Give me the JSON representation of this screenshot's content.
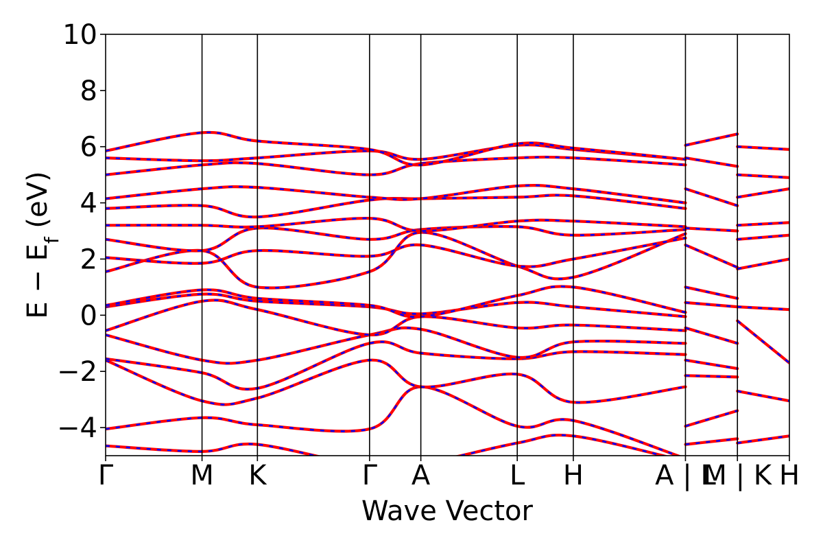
{
  "chart_data": {
    "type": "line",
    "title": "",
    "xlabel": "Wave Vector",
    "ylabel": "E − E_f (eV)",
    "ylabel_main": "E − E",
    "ylabel_sub": "f",
    "ylabel_unit": " (eV)",
    "ylim": [
      -5,
      10
    ],
    "yticks": [
      -4,
      -2,
      0,
      2,
      4,
      6,
      8,
      10
    ],
    "ytick_labels": [
      "−4",
      "−2",
      "0",
      "2",
      "4",
      "6",
      "8",
      "10"
    ],
    "xlim": [
      0,
      1
    ],
    "kpoints": [
      {
        "label": "Γ",
        "x": 0.0
      },
      {
        "label": "M",
        "x": 0.141
      },
      {
        "label": "K",
        "x": 0.222
      },
      {
        "label": "Γ",
        "x": 0.386
      },
      {
        "label": "A",
        "x": 0.461
      },
      {
        "label": "L",
        "x": 0.602
      },
      {
        "label": "H",
        "x": 0.684
      },
      {
        "label": "A | L",
        "x": 0.848
      },
      {
        "label": "M | K",
        "x": 0.924
      },
      {
        "label": "H",
        "x": 1.0
      }
    ],
    "segment_breaks": [
      0.848,
      0.924
    ],
    "series_colors": {
      "primary": "#ff0000",
      "overlay": "#0000ff"
    },
    "grid": false,
    "bands": [
      {
        "x": [
          0,
          0.141,
          0.222,
          0.386,
          0.461,
          0.602,
          0.684,
          0.848
        ],
        "y": [
          -4.65,
          -4.85,
          -4.6,
          -5.4,
          -5.3,
          -4.55,
          -4.3,
          -5.2
        ]
      },
      {
        "x": [
          0,
          0.141,
          0.222,
          0.386,
          0.461,
          0.602,
          0.684,
          0.848
        ],
        "y": [
          -4.05,
          -3.65,
          -3.9,
          -4.05,
          -2.55,
          -3.95,
          -3.75,
          -5.1
        ]
      },
      {
        "x": [
          0,
          0.141,
          0.222,
          0.386,
          0.461,
          0.602,
          0.684,
          0.848
        ],
        "y": [
          -1.6,
          -3.05,
          -2.95,
          -1.6,
          -2.55,
          -2.1,
          -3.1,
          -2.55
        ]
      },
      {
        "x": [
          0,
          0.141,
          0.222,
          0.386,
          0.461,
          0.602,
          0.684,
          0.848
        ],
        "y": [
          -1.55,
          -2.05,
          -2.6,
          -1.0,
          -1.35,
          -1.55,
          -1.3,
          -1.4
        ]
      },
      {
        "x": [
          0,
          0.141,
          0.222,
          0.386,
          0.461,
          0.602,
          0.684,
          0.848
        ],
        "y": [
          -0.7,
          -1.6,
          -1.6,
          -0.7,
          -0.5,
          -1.5,
          -0.95,
          -1.0
        ]
      },
      {
        "x": [
          0,
          0.141,
          0.222,
          0.386,
          0.461,
          0.602,
          0.684,
          0.848
        ],
        "y": [
          -0.55,
          0.5,
          0.2,
          -0.7,
          -0.05,
          -0.45,
          -0.35,
          -0.55
        ]
      },
      {
        "x": [
          0,
          0.141,
          0.222,
          0.386,
          0.461,
          0.602,
          0.684,
          0.848
        ],
        "y": [
          0.3,
          0.75,
          0.5,
          0.3,
          0.05,
          0.45,
          0.3,
          -0.05
        ]
      },
      {
        "x": [
          0,
          0.141,
          0.222,
          0.386,
          0.461,
          0.602,
          0.684,
          0.848
        ],
        "y": [
          0.35,
          0.9,
          0.6,
          0.35,
          -0.05,
          0.7,
          1.0,
          0.1
        ]
      },
      {
        "x": [
          0,
          0.141,
          0.222,
          0.386,
          0.461,
          0.602,
          0.684,
          0.848
        ],
        "y": [
          1.55,
          2.3,
          1.0,
          1.55,
          2.95,
          1.75,
          1.35,
          2.9
        ]
      },
      {
        "x": [
          0,
          0.141,
          0.222,
          0.386,
          0.461,
          0.602,
          0.684,
          0.848
        ],
        "y": [
          2.05,
          1.85,
          2.3,
          2.1,
          2.5,
          1.75,
          2.0,
          2.75
        ]
      },
      {
        "x": [
          0,
          0.141,
          0.222,
          0.386,
          0.461,
          0.602,
          0.684,
          0.848
        ],
        "y": [
          2.7,
          2.3,
          3.1,
          2.7,
          3.05,
          3.15,
          2.85,
          3.05
        ]
      },
      {
        "x": [
          0,
          0.141,
          0.222,
          0.386,
          0.461,
          0.602,
          0.684,
          0.848
        ],
        "y": [
          3.2,
          3.2,
          3.15,
          3.45,
          3.0,
          3.35,
          3.35,
          3.15
        ]
      },
      {
        "x": [
          0,
          0.141,
          0.222,
          0.386,
          0.461,
          0.602,
          0.684,
          0.848
        ],
        "y": [
          3.8,
          3.9,
          3.5,
          4.1,
          4.15,
          4.2,
          4.25,
          3.8
        ]
      },
      {
        "x": [
          0,
          0.141,
          0.222,
          0.386,
          0.461,
          0.602,
          0.684,
          0.848
        ],
        "y": [
          4.15,
          4.5,
          4.55,
          4.2,
          4.15,
          4.6,
          4.5,
          4.0
        ]
      },
      {
        "x": [
          0,
          0.141,
          0.222,
          0.386,
          0.461,
          0.602,
          0.684,
          0.848
        ],
        "y": [
          5.0,
          5.35,
          5.4,
          5.0,
          5.4,
          5.6,
          5.6,
          5.35
        ]
      },
      {
        "x": [
          0,
          0.141,
          0.222,
          0.386,
          0.461,
          0.602,
          0.684,
          0.848
        ],
        "y": [
          5.6,
          5.5,
          5.6,
          5.85,
          5.55,
          6.05,
          5.9,
          5.55
        ]
      },
      {
        "x": [
          0,
          0.141,
          0.222,
          0.386,
          0.461,
          0.602,
          0.684,
          0.848
        ],
        "y": [
          5.85,
          6.5,
          6.2,
          5.9,
          5.35,
          6.1,
          5.95,
          5.55
        ]
      },
      {
        "x": [
          0.848,
          0.924
        ],
        "y": [
          -4.6,
          -4.4
        ]
      },
      {
        "x": [
          0.848,
          0.924
        ],
        "y": [
          -3.95,
          -3.4
        ]
      },
      {
        "x": [
          0.848,
          0.924
        ],
        "y": [
          -2.15,
          -2.2
        ]
      },
      {
        "x": [
          0.848,
          0.924
        ],
        "y": [
          -1.6,
          -1.9
        ]
      },
      {
        "x": [
          0.848,
          0.924
        ],
        "y": [
          -0.45,
          -1.0
        ]
      },
      {
        "x": [
          0.848,
          0.924
        ],
        "y": [
          0.45,
          0.3
        ]
      },
      {
        "x": [
          0.848,
          0.924
        ],
        "y": [
          1.0,
          0.6
        ]
      },
      {
        "x": [
          0.848,
          0.924
        ],
        "y": [
          2.5,
          1.7
        ]
      },
      {
        "x": [
          0.848,
          0.924
        ],
        "y": [
          3.1,
          3.0
        ]
      },
      {
        "x": [
          0.848,
          0.924
        ],
        "y": [
          4.5,
          3.9
        ]
      },
      {
        "x": [
          0.848,
          0.924
        ],
        "y": [
          5.6,
          5.3
        ]
      },
      {
        "x": [
          0.848,
          0.924
        ],
        "y": [
          6.05,
          6.45
        ]
      },
      {
        "x": [
          0.924,
          1.0
        ],
        "y": [
          -4.55,
          -4.3
        ]
      },
      {
        "x": [
          0.924,
          1.0
        ],
        "y": [
          -2.7,
          -3.05
        ]
      },
      {
        "x": [
          0.924,
          1.0
        ],
        "y": [
          -0.2,
          -1.7
        ]
      },
      {
        "x": [
          0.924,
          1.0
        ],
        "y": [
          0.3,
          0.2
        ]
      },
      {
        "x": [
          0.924,
          1.0
        ],
        "y": [
          1.65,
          2.0
        ]
      },
      {
        "x": [
          0.924,
          1.0
        ],
        "y": [
          2.7,
          2.85
        ]
      },
      {
        "x": [
          0.924,
          1.0
        ],
        "y": [
          3.2,
          3.3
        ]
      },
      {
        "x": [
          0.924,
          1.0
        ],
        "y": [
          4.2,
          4.5
        ]
      },
      {
        "x": [
          0.924,
          1.0
        ],
        "y": [
          5.0,
          4.9
        ]
      },
      {
        "x": [
          0.924,
          1.0
        ],
        "y": [
          6.0,
          5.9
        ]
      }
    ]
  }
}
